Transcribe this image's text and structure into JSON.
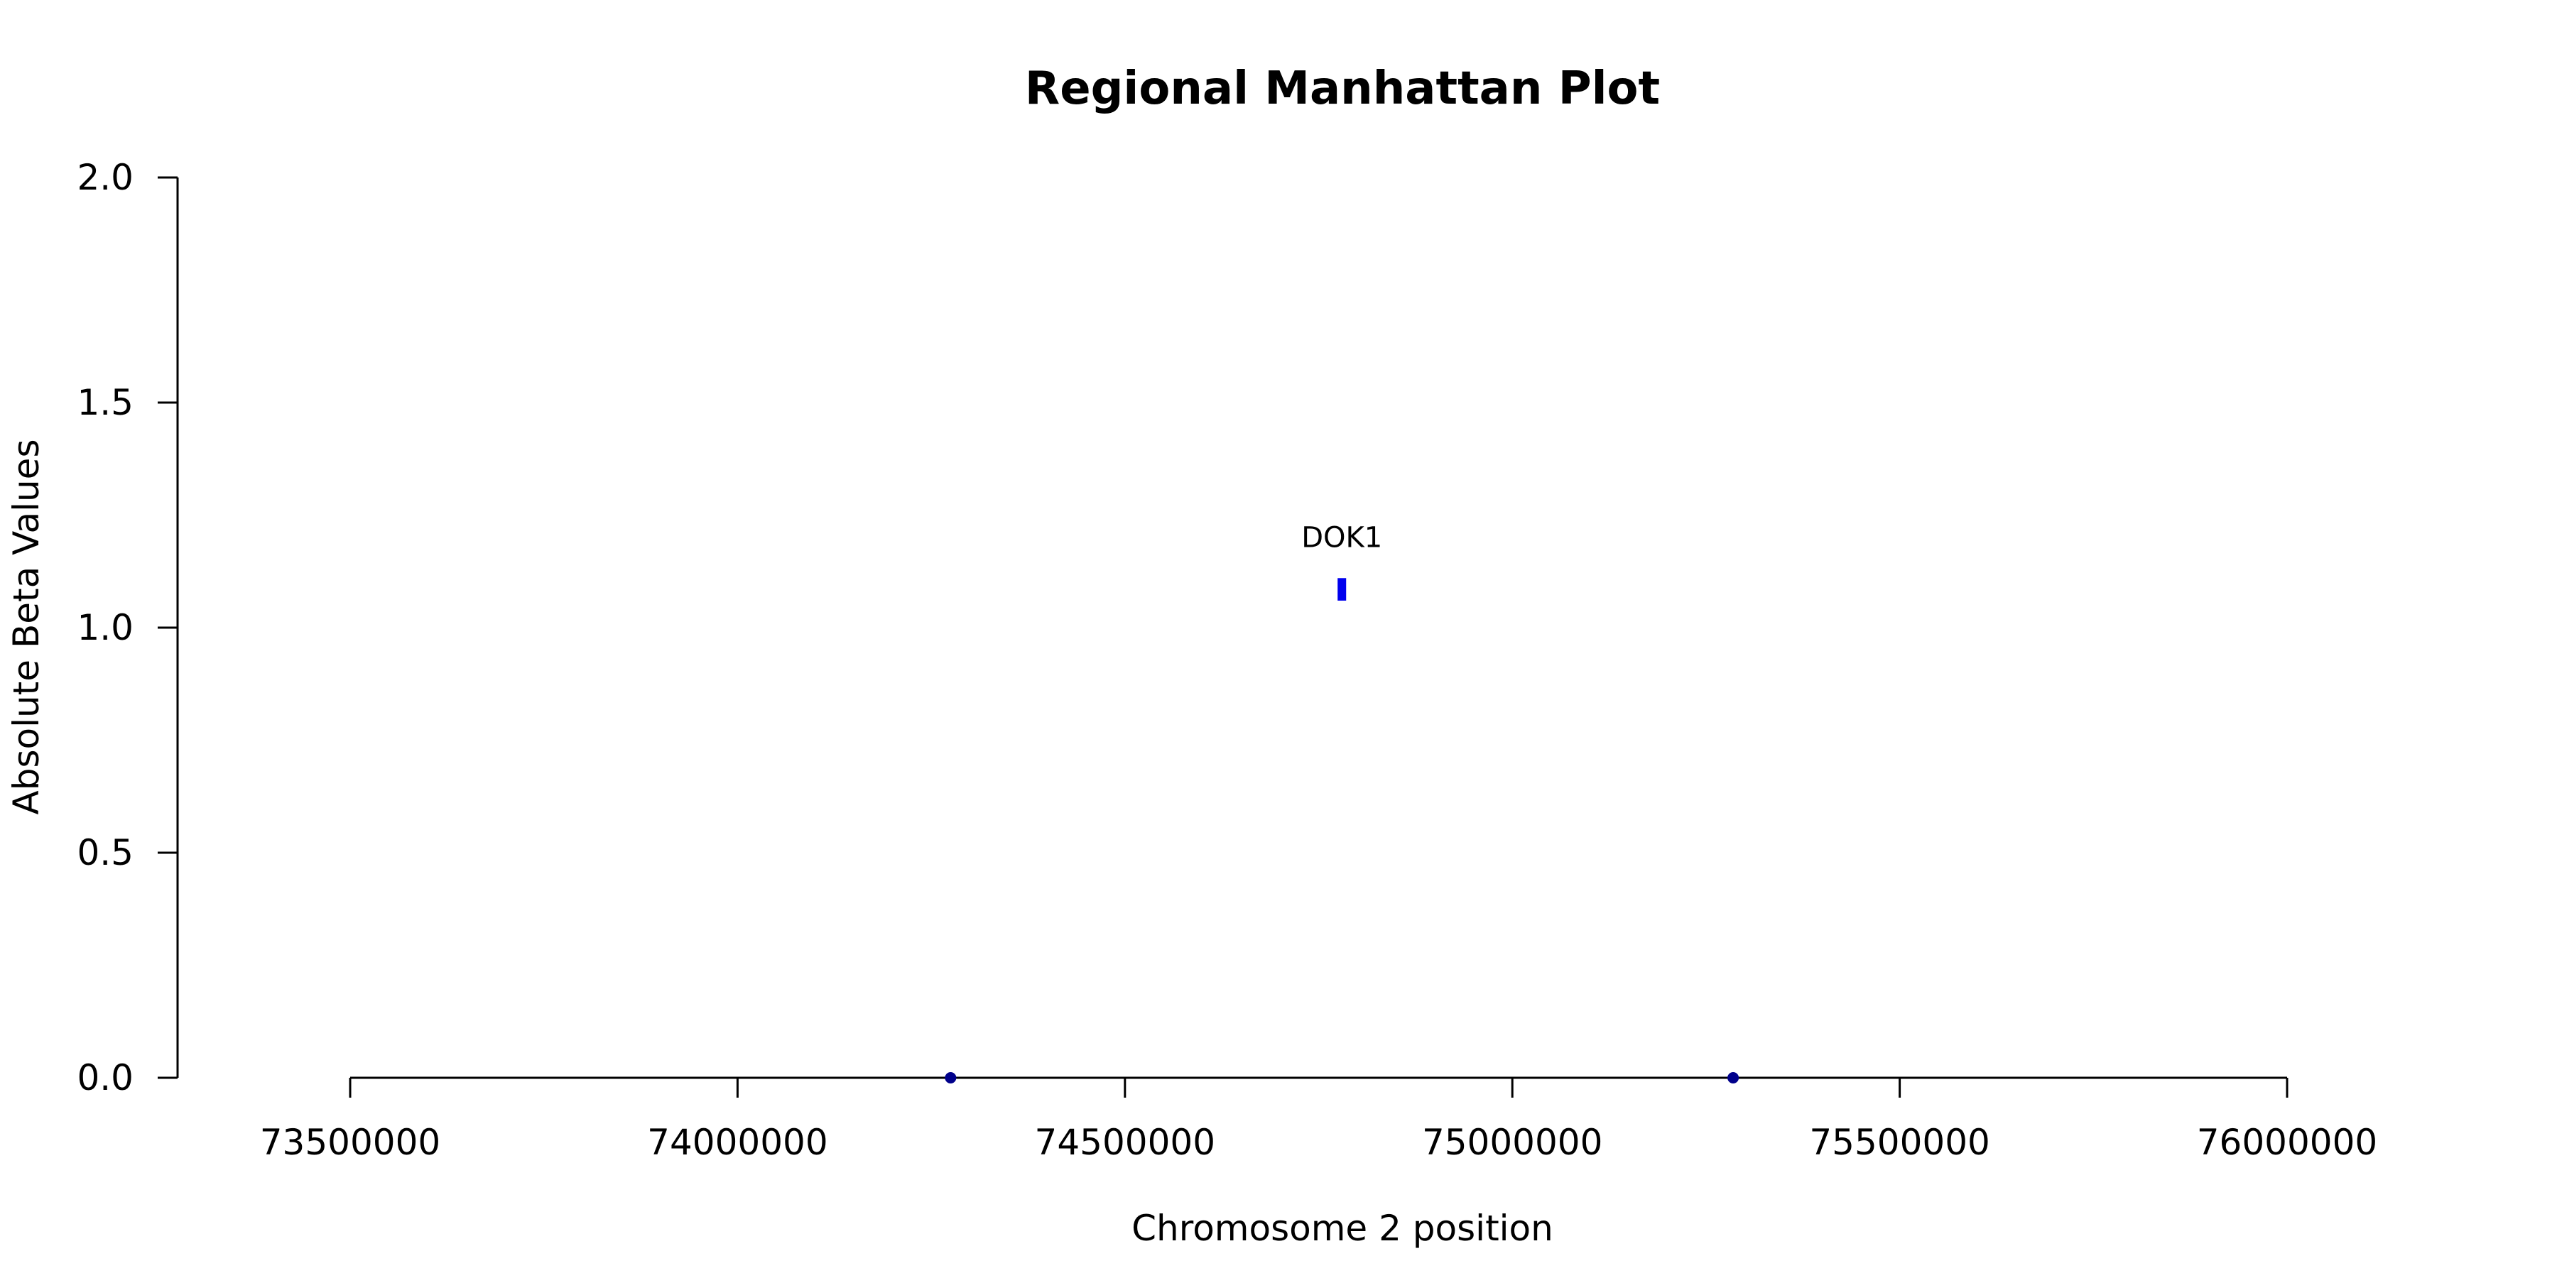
{
  "chart_data": {
    "type": "scatter",
    "title": "Regional Manhattan Plot",
    "xlabel": "Chromosome 2 position",
    "ylabel": "Absolute Beta Values",
    "xlim": [
      73500000,
      76000000
    ],
    "ylim": [
      0,
      2.0
    ],
    "xticks": [
      73500000,
      74000000,
      74500000,
      75000000,
      75500000,
      76000000
    ],
    "xtick_labels": [
      "73500000",
      "74000000",
      "74500000",
      "75000000",
      "75500000",
      "76000000"
    ],
    "yticks": [
      0,
      0.5,
      1.0,
      1.5,
      2.0
    ],
    "ytick_labels": [
      "0.0",
      "0.5",
      "1.0",
      "1.5",
      "2.0"
    ],
    "grid": false,
    "points": [
      {
        "x": 74275000,
        "y": 0.0,
        "color": "#00008b",
        "shape": "circle"
      },
      {
        "x": 75285000,
        "y": 0.0,
        "color": "#00008b",
        "shape": "circle"
      }
    ],
    "highlight": {
      "x": 74780000,
      "y_low": 1.06,
      "y_high": 1.11,
      "color": "#0000ee",
      "label": "DOK1"
    },
    "colors": {
      "axis": "#000000",
      "point": "#00008b",
      "highlight": "#0000ee"
    }
  }
}
